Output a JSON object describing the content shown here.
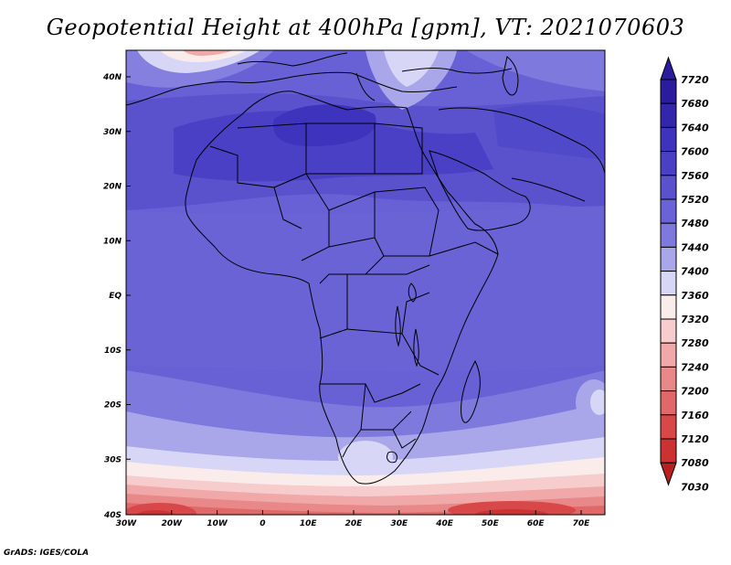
{
  "title": "Geopotential Height at 400hPa [gpm], VT: 2021070603",
  "credit": "GrADS: IGES/COLA",
  "map": {
    "lat_labels": [
      "40N",
      "30N",
      "20N",
      "10N",
      "EQ",
      "10S",
      "20S",
      "30S",
      "40S"
    ],
    "lon_labels": [
      "30W",
      "20W",
      "10W",
      "0",
      "10E",
      "20E",
      "30E",
      "40E",
      "50E",
      "60E",
      "70E"
    ]
  },
  "colorbar": {
    "levels": [
      "7720",
      "7680",
      "7640",
      "7600",
      "7560",
      "7520",
      "7480",
      "7440",
      "7400",
      "7360",
      "7320",
      "7280",
      "7240",
      "7200",
      "7160",
      "7120",
      "7080",
      "7030"
    ],
    "colors": [
      "#2a1c9c",
      "#3326ac",
      "#3d33bd",
      "#4a40c6",
      "#5a51cd",
      "#6a63d6",
      "#7e79dd",
      "#a9a6ea",
      "#d8d6f6",
      "#fbecec",
      "#f6cccc",
      "#f0a8a8",
      "#e88888",
      "#e06868",
      "#d84848",
      "#cc3232",
      "#b82020"
    ]
  }
}
